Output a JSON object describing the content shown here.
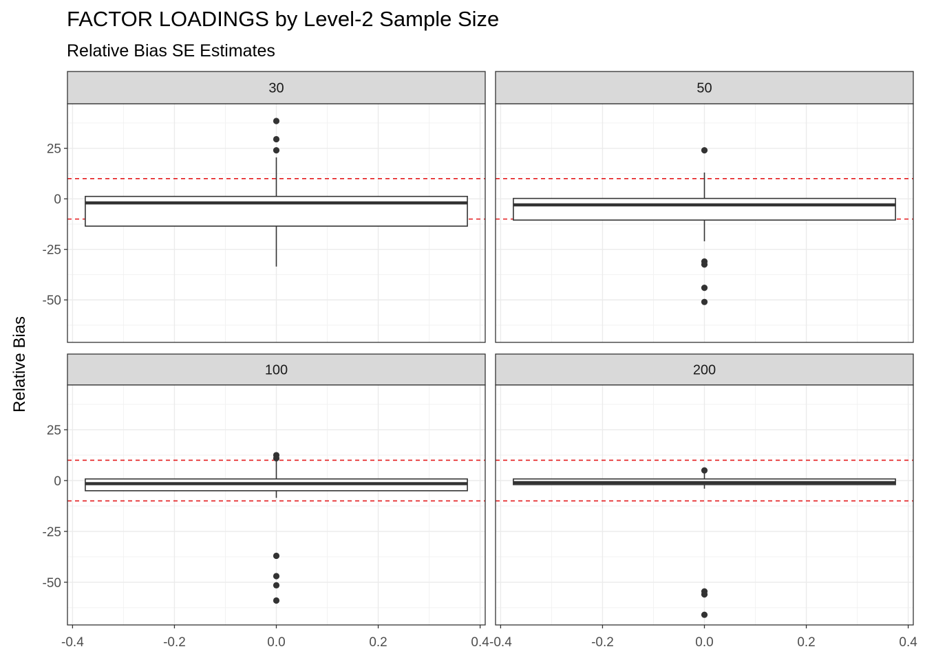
{
  "chart_data": {
    "type": "boxplot",
    "title": "FACTOR LOADINGS by Level-2 Sample Size",
    "subtitle": "Relative Bias SE Estimates",
    "xlabel": "",
    "ylabel": "Relative Bias",
    "xlim": [
      -0.41,
      0.41
    ],
    "ylim": [
      -71,
      47
    ],
    "x_ticks": [
      -0.4,
      -0.2,
      0.0,
      0.2,
      0.4
    ],
    "x_tick_labels": [
      "-0.4",
      "-0.2",
      "0.0",
      "0.2",
      "0.4"
    ],
    "y_ticks": [
      25,
      0,
      -25,
      -50
    ],
    "y_tick_labels": [
      "25",
      "0",
      "-25",
      "-50"
    ],
    "reference_lines": [
      10,
      -10
    ],
    "reference_line_color": "#e41a1c",
    "grid": true,
    "layout": "2x2 facets",
    "box_x_range": [
      -0.375,
      0.375
    ],
    "panels": [
      {
        "label": "30",
        "q1": -13.5,
        "median": -2,
        "q3": 1.2,
        "whisker_low": -33.5,
        "whisker_high": 20.5,
        "outliers": [
          38.5,
          29.5,
          24
        ]
      },
      {
        "label": "50",
        "q1": -10.5,
        "median": -3,
        "q3": 0.2,
        "whisker_low": -21,
        "whisker_high": 13,
        "outliers": [
          24,
          -31,
          -32.5,
          -44,
          -51
        ]
      },
      {
        "label": "100",
        "q1": -5,
        "median": -1.5,
        "q3": 0.8,
        "whisker_low": -8.5,
        "whisker_high": 10.5,
        "outliers": [
          12.5,
          11,
          -37,
          -47,
          -51.5,
          -59
        ]
      },
      {
        "label": "200",
        "q1": -2,
        "median": -1,
        "q3": 0.8,
        "whisker_low": -4,
        "whisker_high": 4,
        "outliers": [
          5,
          -54.5,
          -56,
          -66
        ]
      }
    ]
  }
}
